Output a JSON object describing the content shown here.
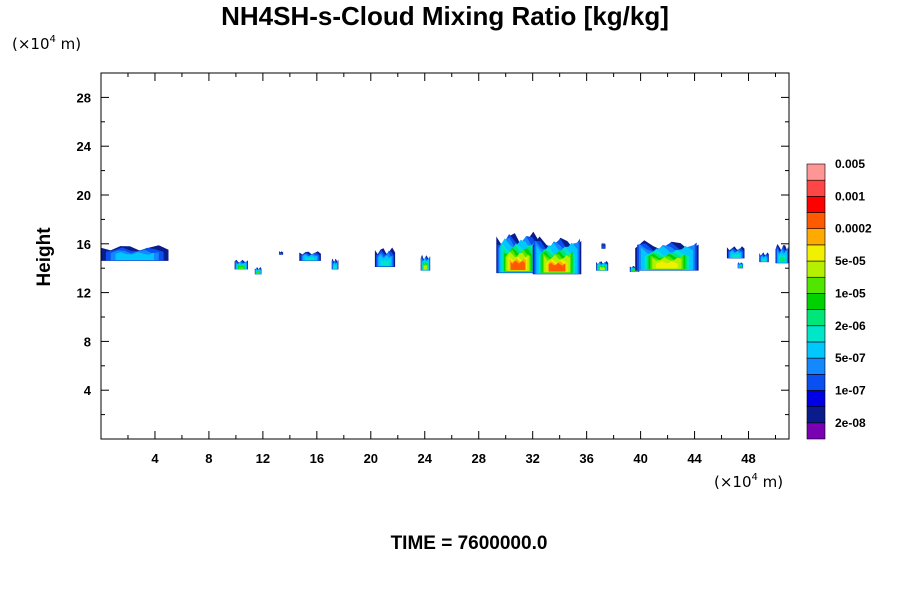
{
  "chart_data": {
    "type": "heatmap",
    "title": "NH4SH-s-Cloud Mixing Ratio [kg/kg]",
    "ylabel": "Height",
    "x_unit": {
      "prefix": "(×10",
      "exp": "4",
      "suffix": " m)"
    },
    "y_unit": {
      "prefix": "(×10",
      "exp": "4",
      "suffix": " m)"
    },
    "xlim": [
      0,
      51
    ],
    "ylim": [
      0,
      30
    ],
    "x_ticks": [
      4,
      8,
      12,
      16,
      20,
      24,
      28,
      32,
      36,
      40,
      44,
      48
    ],
    "x_tick_labels": [
      "4",
      "8",
      "12",
      "16",
      "20",
      "24",
      "28",
      "32",
      "36",
      "40",
      "44",
      "48"
    ],
    "y_ticks": [
      4,
      8,
      12,
      16,
      20,
      24,
      28
    ],
    "y_tick_labels": [
      "4",
      "8",
      "12",
      "16",
      "20",
      "24",
      "28"
    ],
    "colorbar": {
      "colors": [
        "#7a00b4",
        "#0a1c8c",
        "#0000e6",
        "#0a50f0",
        "#1488ff",
        "#00c8ff",
        "#00e6c8",
        "#00e678",
        "#00d200",
        "#50e600",
        "#b4f000",
        "#f0f000",
        "#ffaa00",
        "#ff5a00",
        "#ff0000",
        "#ff4646",
        "#ff9696"
      ],
      "labels": [
        {
          "text": "2e-08",
          "index": 1
        },
        {
          "text": "1e-07",
          "index": 3
        },
        {
          "text": "5e-07",
          "index": 5
        },
        {
          "text": "2e-06",
          "index": 7
        },
        {
          "text": "1e-05",
          "index": 9
        },
        {
          "text": "5e-05",
          "index": 11
        },
        {
          "text": "0.0002",
          "index": 13
        },
        {
          "text": "0.001",
          "index": 15
        },
        {
          "text": "0.005",
          "index": 17
        }
      ]
    },
    "clouds": [
      {
        "x0": 0.0,
        "x1": 5.0,
        "ybot": 14.6,
        "ytop": 15.9,
        "peak": 5
      },
      {
        "x0": 9.9,
        "x1": 10.9,
        "ybot": 13.9,
        "ytop": 14.7,
        "peak": 9
      },
      {
        "x0": 11.4,
        "x1": 11.9,
        "ybot": 13.5,
        "ytop": 14.1,
        "peak": 9
      },
      {
        "x0": 13.2,
        "x1": 13.5,
        "ybot": 15.1,
        "ytop": 15.4,
        "peak": 3
      },
      {
        "x0": 14.7,
        "x1": 16.3,
        "ybot": 14.6,
        "ytop": 15.4,
        "peak": 6
      },
      {
        "x0": 17.1,
        "x1": 17.6,
        "ybot": 13.9,
        "ytop": 14.8,
        "peak": 6
      },
      {
        "x0": 20.3,
        "x1": 21.8,
        "ybot": 14.1,
        "ytop": 15.7,
        "peak": 6
      },
      {
        "x0": 23.7,
        "x1": 24.4,
        "ybot": 13.8,
        "ytop": 15.1,
        "peak": 10
      },
      {
        "x0": 29.3,
        "x1": 32.5,
        "ybot": 13.6,
        "ytop": 17.0,
        "peak": 13
      },
      {
        "x0": 32.0,
        "x1": 35.6,
        "ybot": 13.5,
        "ytop": 16.6,
        "peak": 13
      },
      {
        "x0": 36.7,
        "x1": 37.6,
        "ybot": 13.8,
        "ytop": 14.6,
        "peak": 10
      },
      {
        "x0": 37.1,
        "x1": 37.4,
        "ybot": 15.6,
        "ytop": 16.1,
        "peak": 3
      },
      {
        "x0": 39.2,
        "x1": 39.9,
        "ybot": 13.7,
        "ytop": 14.2,
        "peak": 9
      },
      {
        "x0": 39.6,
        "x1": 44.3,
        "ybot": 13.8,
        "ytop": 16.3,
        "peak": 11
      },
      {
        "x0": 46.4,
        "x1": 47.7,
        "ybot": 14.8,
        "ytop": 15.8,
        "peak": 6
      },
      {
        "x0": 47.2,
        "x1": 47.6,
        "ybot": 14.0,
        "ytop": 14.5,
        "peak": 8
      },
      {
        "x0": 48.8,
        "x1": 49.5,
        "ybot": 14.5,
        "ytop": 15.3,
        "peak": 6
      },
      {
        "x0": 50.0,
        "x1": 51.0,
        "ybot": 14.4,
        "ytop": 16.0,
        "peak": 7
      }
    ]
  },
  "footer": {
    "time_label": "TIME = 7600000.0"
  }
}
